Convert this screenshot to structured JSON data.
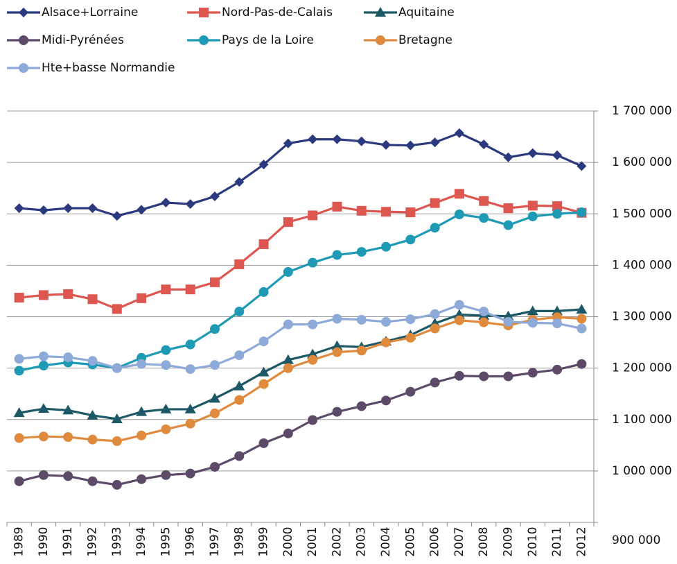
{
  "chart_data": {
    "type": "line",
    "categories": [
      "1989",
      "1990",
      "1991",
      "1992",
      "1993",
      "1994",
      "1995",
      "1996",
      "1997",
      "1998",
      "1999",
      "2000",
      "2001",
      "2002",
      "2003",
      "2004",
      "2005",
      "2006",
      "2007",
      "2008",
      "2009",
      "2010",
      "2011",
      "2012"
    ],
    "series": [
      {
        "name": "Alsace+Lorraine",
        "color": "#2b3a7e",
        "marker": "diamond",
        "values": [
          1511000,
          1507000,
          1511000,
          1511000,
          1496000,
          1508000,
          1522000,
          1519000,
          1534000,
          1562000,
          1596000,
          1637000,
          1645000,
          1645000,
          1641000,
          1634000,
          1633000,
          1639000,
          1657000,
          1635000,
          1610000,
          1618000,
          1614000,
          1593000
        ]
      },
      {
        "name": "Nord-Pas-de-Calais",
        "color": "#de5650",
        "marker": "square",
        "values": [
          1337000,
          1342000,
          1344000,
          1334000,
          1315000,
          1336000,
          1353000,
          1353000,
          1367000,
          1402000,
          1441000,
          1484000,
          1497000,
          1514000,
          1506000,
          1504000,
          1503000,
          1521000,
          1539000,
          1525000,
          1511000,
          1516000,
          1515000,
          1502000
        ]
      },
      {
        "name": "Aquitaine",
        "color": "#1d5866",
        "marker": "triangle",
        "values": [
          1113000,
          1121000,
          1118000,
          1108000,
          1101000,
          1115000,
          1120000,
          1120000,
          1141000,
          1165000,
          1192000,
          1216000,
          1227000,
          1243000,
          1241000,
          1252000,
          1264000,
          1287000,
          1304000,
          1302000,
          1301000,
          1311000,
          1311000,
          1314000
        ]
      },
      {
        "name": "Midi-Pyrénées",
        "color": "#5c4a68",
        "marker": "circle",
        "values": [
          980000,
          992000,
          990000,
          980000,
          973000,
          984000,
          992000,
          995000,
          1008000,
          1029000,
          1054000,
          1073000,
          1099000,
          1115000,
          1126000,
          1137000,
          1154000,
          1172000,
          1185000,
          1184000,
          1184000,
          1191000,
          1197000,
          1208000
        ]
      },
      {
        "name": "Pays de la Loire",
        "color": "#1e9ab5",
        "marker": "circle",
        "values": [
          1195000,
          1205000,
          1211000,
          1207000,
          1200000,
          1220000,
          1235000,
          1246000,
          1276000,
          1310000,
          1348000,
          1387000,
          1405000,
          1420000,
          1426000,
          1436000,
          1450000,
          1473000,
          1499000,
          1492000,
          1478000,
          1495000,
          1500000,
          1503000
        ]
      },
      {
        "name": "Bretagne",
        "color": "#e08a3e",
        "marker": "circle",
        "values": [
          1064000,
          1067000,
          1066000,
          1061000,
          1058000,
          1069000,
          1081000,
          1092000,
          1112000,
          1138000,
          1169000,
          1200000,
          1216000,
          1231000,
          1234000,
          1250000,
          1259000,
          1277000,
          1293000,
          1289000,
          1283000,
          1294000,
          1299000,
          1296000
        ]
      },
      {
        "name": "Hte+basse Normandie",
        "color": "#8eaad8",
        "marker": "circle",
        "values": [
          1218000,
          1223000,
          1221000,
          1214000,
          1200000,
          1208000,
          1206000,
          1198000,
          1206000,
          1225000,
          1252000,
          1285000,
          1285000,
          1296000,
          1294000,
          1290000,
          1295000,
          1305000,
          1323000,
          1310000,
          1290000,
          1288000,
          1287000,
          1277000
        ]
      }
    ],
    "ylim": [
      900000,
      1700000
    ],
    "yticks": [
      {
        "value": 900000,
        "label": "900 000"
      },
      {
        "value": 1000000,
        "label": "1 000 000"
      },
      {
        "value": 1100000,
        "label": "1 100 000"
      },
      {
        "value": 1200000,
        "label": "1 200 000"
      },
      {
        "value": 1300000,
        "label": "1 300 000"
      },
      {
        "value": 1400000,
        "label": "1 400 000"
      },
      {
        "value": 1500000,
        "label": "1 500 000"
      },
      {
        "value": 1600000,
        "label": "1 600 000"
      },
      {
        "value": 1700000,
        "label": "1 700 000"
      }
    ],
    "yaxis_side": "right",
    "grid": true,
    "legend": "top"
  }
}
